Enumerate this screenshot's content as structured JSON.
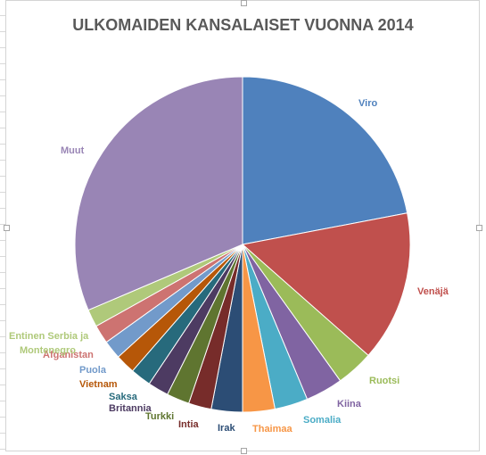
{
  "chart_data": {
    "type": "pie",
    "title": "ULKOMAIDEN KANSALAISET VUONNA 2014",
    "slices": [
      {
        "label": "Viro",
        "value": 22.0,
        "color": "#4f81bd",
        "label_color": "#4f81bd"
      },
      {
        "label": "Venäjä",
        "value": 14.5,
        "color": "#c0504d",
        "label_color": "#c0504d"
      },
      {
        "label": "Ruotsi",
        "value": 3.6,
        "color": "#9bbb59",
        "label_color": "#9bbb59"
      },
      {
        "label": "Kiina",
        "value": 3.6,
        "color": "#8064a2",
        "label_color": "#8064a2"
      },
      {
        "label": "Somalia",
        "value": 3.2,
        "color": "#4bacc6",
        "label_color": "#4bacc6"
      },
      {
        "label": "Thaimaa",
        "value": 3.1,
        "color": "#f79646",
        "label_color": "#f79646"
      },
      {
        "label": "Irak",
        "value": 3.0,
        "color": "#2c4d75",
        "label_color": "#2c4d75"
      },
      {
        "label": "Intia",
        "value": 2.2,
        "color": "#772c2a",
        "label_color": "#772c2a"
      },
      {
        "label": "Turkki",
        "value": 2.2,
        "color": "#5f7530",
        "label_color": "#5f7530"
      },
      {
        "label": "Britannia",
        "value": 2.0,
        "color": "#4d3b62",
        "label_color": "#4d3b62"
      },
      {
        "label": "Saksa",
        "value": 2.0,
        "color": "#276a7c",
        "label_color": "#276a7c"
      },
      {
        "label": "Vietnam",
        "value": 1.9,
        "color": "#b65708",
        "label_color": "#b65708"
      },
      {
        "label": "Puola",
        "value": 1.8,
        "color": "#729aca",
        "label_color": "#729aca"
      },
      {
        "label": "Afganistan",
        "value": 1.8,
        "color": "#cd7371",
        "label_color": "#cd7371"
      },
      {
        "label": "Entinen Serbia ja Montenegro",
        "value": 1.7,
        "color": "#afc97a",
        "label_color": "#afc97a"
      },
      {
        "label": "Muut",
        "value": 31.4,
        "color": "#9985b5",
        "label_color": "#9985b5"
      }
    ]
  }
}
